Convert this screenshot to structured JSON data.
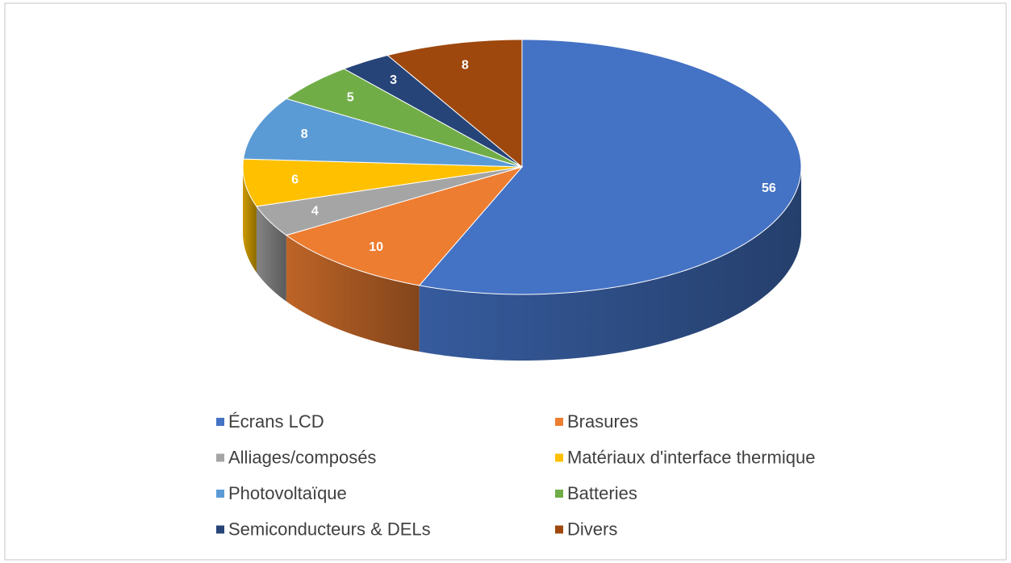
{
  "chart_data": {
    "type": "pie",
    "categories": [
      "Écrans LCD",
      "Brasures",
      "Alliages/composés",
      "Matériaux d'interface thermique",
      "Photovoltaïque",
      "Batteries",
      "Semiconducteurs & DELs",
      "Divers"
    ],
    "values": [
      56,
      10,
      4,
      6,
      8,
      5,
      3,
      8
    ],
    "colors": [
      "#4472c4",
      "#ed7d31",
      "#a5a5a5",
      "#ffc000",
      "#5b9bd5",
      "#70ad47",
      "#264478",
      "#9e480e"
    ],
    "legend": "bottom"
  }
}
